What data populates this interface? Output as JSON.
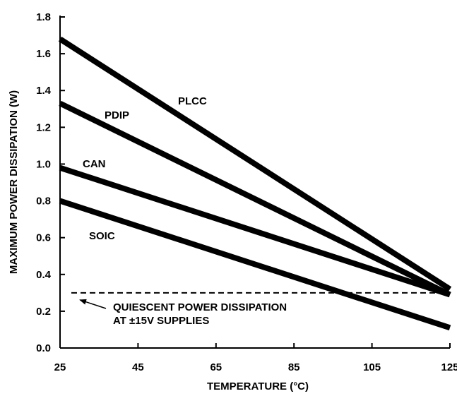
{
  "chart_data": {
    "type": "line",
    "xlabel": "TEMPERATURE (°C)",
    "ylabel": "MAXIMUM POWER DISSIPATION (W)",
    "xlim": [
      25,
      125
    ],
    "ylim": [
      0,
      1.8
    ],
    "xticks": [
      "25",
      "45",
      "65",
      "85",
      "105",
      "125"
    ],
    "yticks": [
      "0.0",
      "0.2",
      "0.4",
      "0.6",
      "0.8",
      "1.0",
      "1.2",
      "1.4",
      "1.6",
      "1.8"
    ],
    "grid": false,
    "x": [
      25,
      125
    ],
    "series": [
      {
        "name": "PLCC",
        "values": [
          1.68,
          0.32
        ]
      },
      {
        "name": "PDIP",
        "values": [
          1.33,
          0.29
        ]
      },
      {
        "name": "CAN",
        "values": [
          0.98,
          0.29
        ]
      },
      {
        "name": "SOIC",
        "values": [
          0.8,
          0.11
        ]
      }
    ],
    "reference_line": {
      "y": 0.3,
      "style": "dashed"
    },
    "annotation": {
      "lines": [
        "QUIESCENT POWER DISSIPATION",
        "AT ±15V SUPPLIES"
      ],
      "points_to": {
        "x": 29,
        "y": 0.3
      }
    }
  }
}
